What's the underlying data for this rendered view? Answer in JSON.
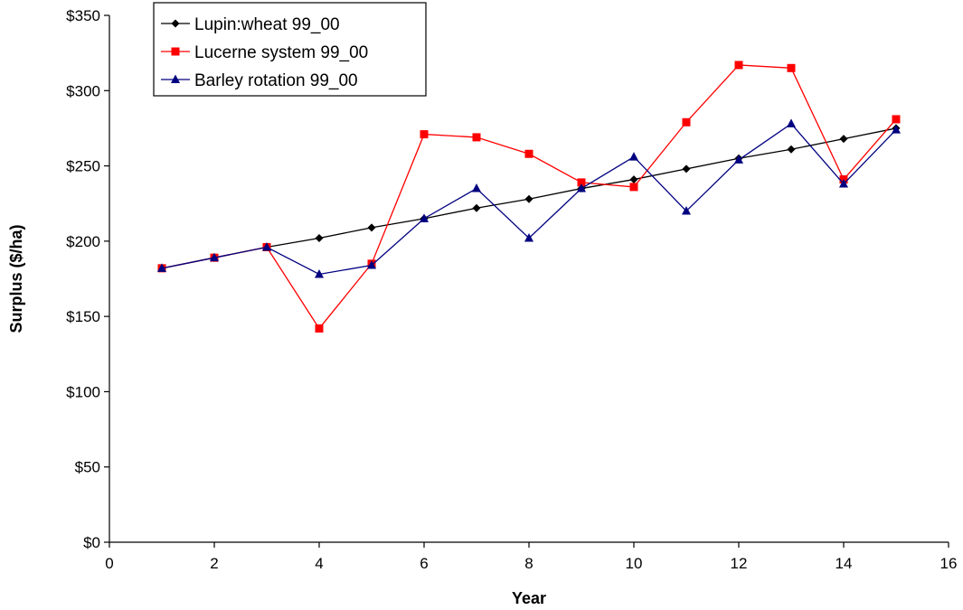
{
  "chart_data": {
    "type": "line",
    "title": "",
    "xlabel": "Year",
    "ylabel": "Surplus ($/ha)",
    "xlim": [
      0,
      16
    ],
    "ylim": [
      0,
      350
    ],
    "x_ticks": [
      0,
      2,
      4,
      6,
      8,
      10,
      12,
      14,
      16
    ],
    "y_ticks": [
      0,
      50,
      100,
      150,
      200,
      250,
      300,
      350
    ],
    "y_tick_labels": [
      "$0",
      "$50",
      "$100",
      "$150",
      "$200",
      "$250",
      "$300",
      "$350"
    ],
    "grid": false,
    "legend_position": "top-left",
    "x": [
      1,
      2,
      3,
      4,
      5,
      6,
      7,
      8,
      9,
      10,
      11,
      12,
      13,
      14,
      15
    ],
    "series": [
      {
        "name": "Lupin:wheat 99_00",
        "color": "#000000",
        "marker": "diamond",
        "values": [
          182,
          189,
          196,
          202,
          209,
          215,
          222,
          228,
          235,
          241,
          248,
          255,
          261,
          268,
          275
        ]
      },
      {
        "name": "Lucerne system 99_00",
        "color": "#ff0000",
        "marker": "square",
        "values": [
          182,
          189,
          196,
          142,
          185,
          271,
          269,
          258,
          239,
          236,
          279,
          317,
          315,
          241,
          281
        ]
      },
      {
        "name": "Barley rotation 99_00",
        "color": "#000080",
        "marker": "triangle",
        "values": [
          182,
          189,
          196,
          178,
          184,
          215,
          235,
          202,
          235,
          256,
          220,
          254,
          278,
          238,
          274
        ]
      }
    ]
  }
}
